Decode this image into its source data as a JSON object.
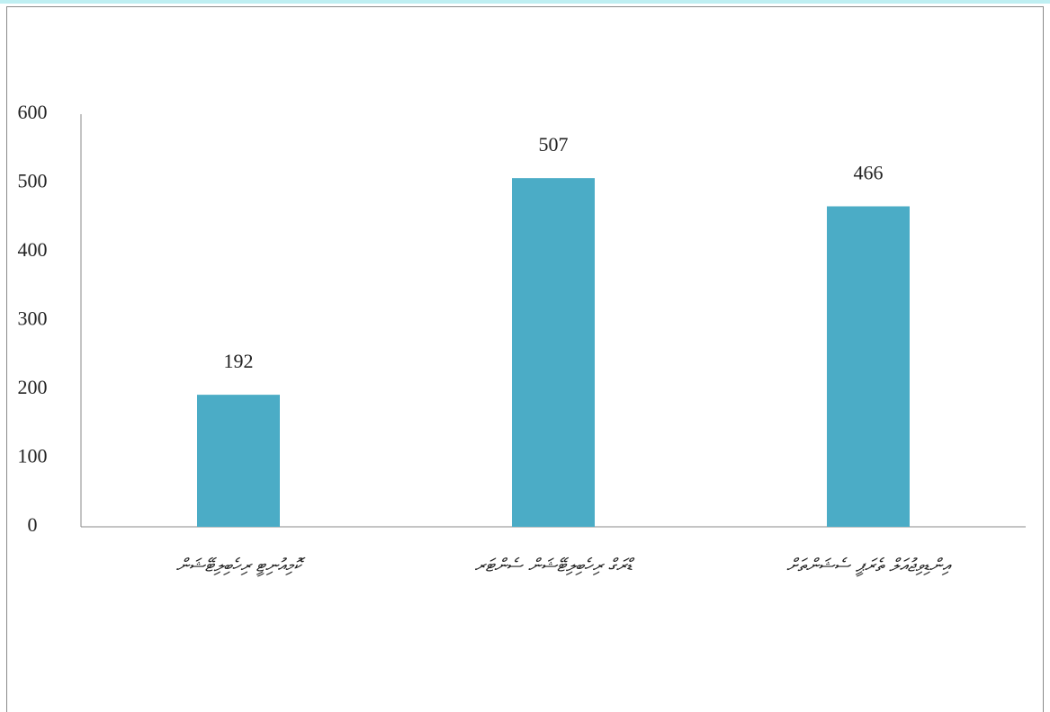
{
  "chart_data": {
    "type": "bar",
    "categories": [
      "ކޮމިއުނިޓީ ރިހެބިލިޓޭޝަން",
      "ޑްރަގް ރިހެބިލިޓޭޝަން ސެންޓަރ",
      "އިންޑިވިޖުއަލް ތެރަޕީ ސެޝަންތަށް"
    ],
    "values": [
      192,
      507,
      466
    ],
    "color": "#4bacc6",
    "ylim": [
      0,
      600
    ],
    "yticks": [
      0,
      100,
      200,
      300,
      400,
      500,
      600
    ],
    "grid": false
  }
}
